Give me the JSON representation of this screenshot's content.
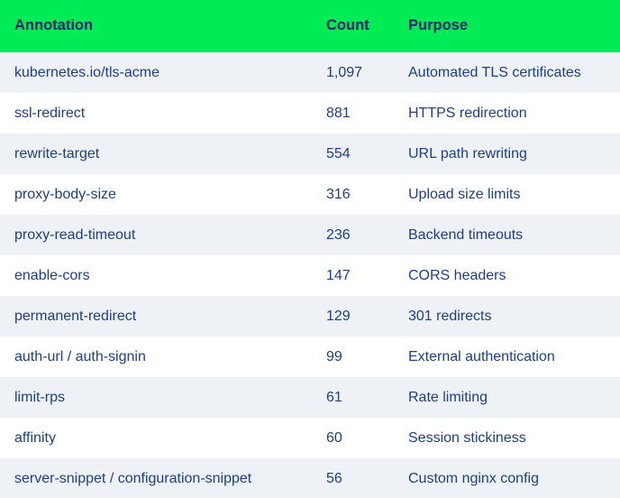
{
  "colors": {
    "header_bg": "#00EB55",
    "header_text": "#13246B",
    "body_text": "#1E3F85",
    "row_alt_bg": "#EEF1F6",
    "row_bg": "#FFFFFF"
  },
  "table": {
    "columns": [
      "Annotation",
      "Count",
      "Purpose"
    ],
    "rows": [
      {
        "annotation": "kubernetes.io/tls-acme",
        "count": "1,097",
        "purpose": "Automated TLS certificates"
      },
      {
        "annotation": "ssl-redirect",
        "count": "881",
        "purpose": "HTTPS redirection"
      },
      {
        "annotation": "rewrite-target",
        "count": "554",
        "purpose": "URL path rewriting"
      },
      {
        "annotation": "proxy-body-size",
        "count": "316",
        "purpose": "Upload size limits"
      },
      {
        "annotation": "proxy-read-timeout",
        "count": "236",
        "purpose": "Backend timeouts"
      },
      {
        "annotation": "enable-cors",
        "count": "147",
        "purpose": "CORS headers"
      },
      {
        "annotation": "permanent-redirect",
        "count": "129",
        "purpose": "301 redirects"
      },
      {
        "annotation": "auth-url / auth-signin",
        "count": "99",
        "purpose": "External authentication"
      },
      {
        "annotation": "limit-rps",
        "count": "61",
        "purpose": "Rate limiting"
      },
      {
        "annotation": "affinity",
        "count": "60",
        "purpose": "Session stickiness"
      },
      {
        "annotation": "server-snippet / configuration-snippet",
        "count": "56",
        "purpose": "Custom nginx config"
      }
    ]
  },
  "chart_data": {
    "type": "table",
    "title": "",
    "columns": [
      "Annotation",
      "Count",
      "Purpose"
    ],
    "rows": [
      [
        "kubernetes.io/tls-acme",
        "1,097",
        "Automated TLS certificates"
      ],
      [
        "ssl-redirect",
        "881",
        "HTTPS redirection"
      ],
      [
        "rewrite-target",
        "554",
        "URL path rewriting"
      ],
      [
        "proxy-body-size",
        "316",
        "Upload size limits"
      ],
      [
        "proxy-read-timeout",
        "236",
        "Backend timeouts"
      ],
      [
        "enable-cors",
        "147",
        "CORS headers"
      ],
      [
        "permanent-redirect",
        "129",
        "301 redirects"
      ],
      [
        "auth-url / auth-signin",
        "99",
        "External authentication"
      ],
      [
        "limit-rps",
        "61",
        "Rate limiting"
      ],
      [
        "affinity",
        "60",
        "Session stickiness"
      ],
      [
        "server-snippet / configuration-snippet",
        "56",
        "Custom nginx config"
      ]
    ],
    "counts_numeric": [
      1097,
      881,
      554,
      316,
      236,
      147,
      129,
      99,
      61,
      60,
      56
    ],
    "layout": {
      "header_fill": "#00EB55",
      "alternating_rows": true,
      "first_data_row_shaded": true
    }
  }
}
